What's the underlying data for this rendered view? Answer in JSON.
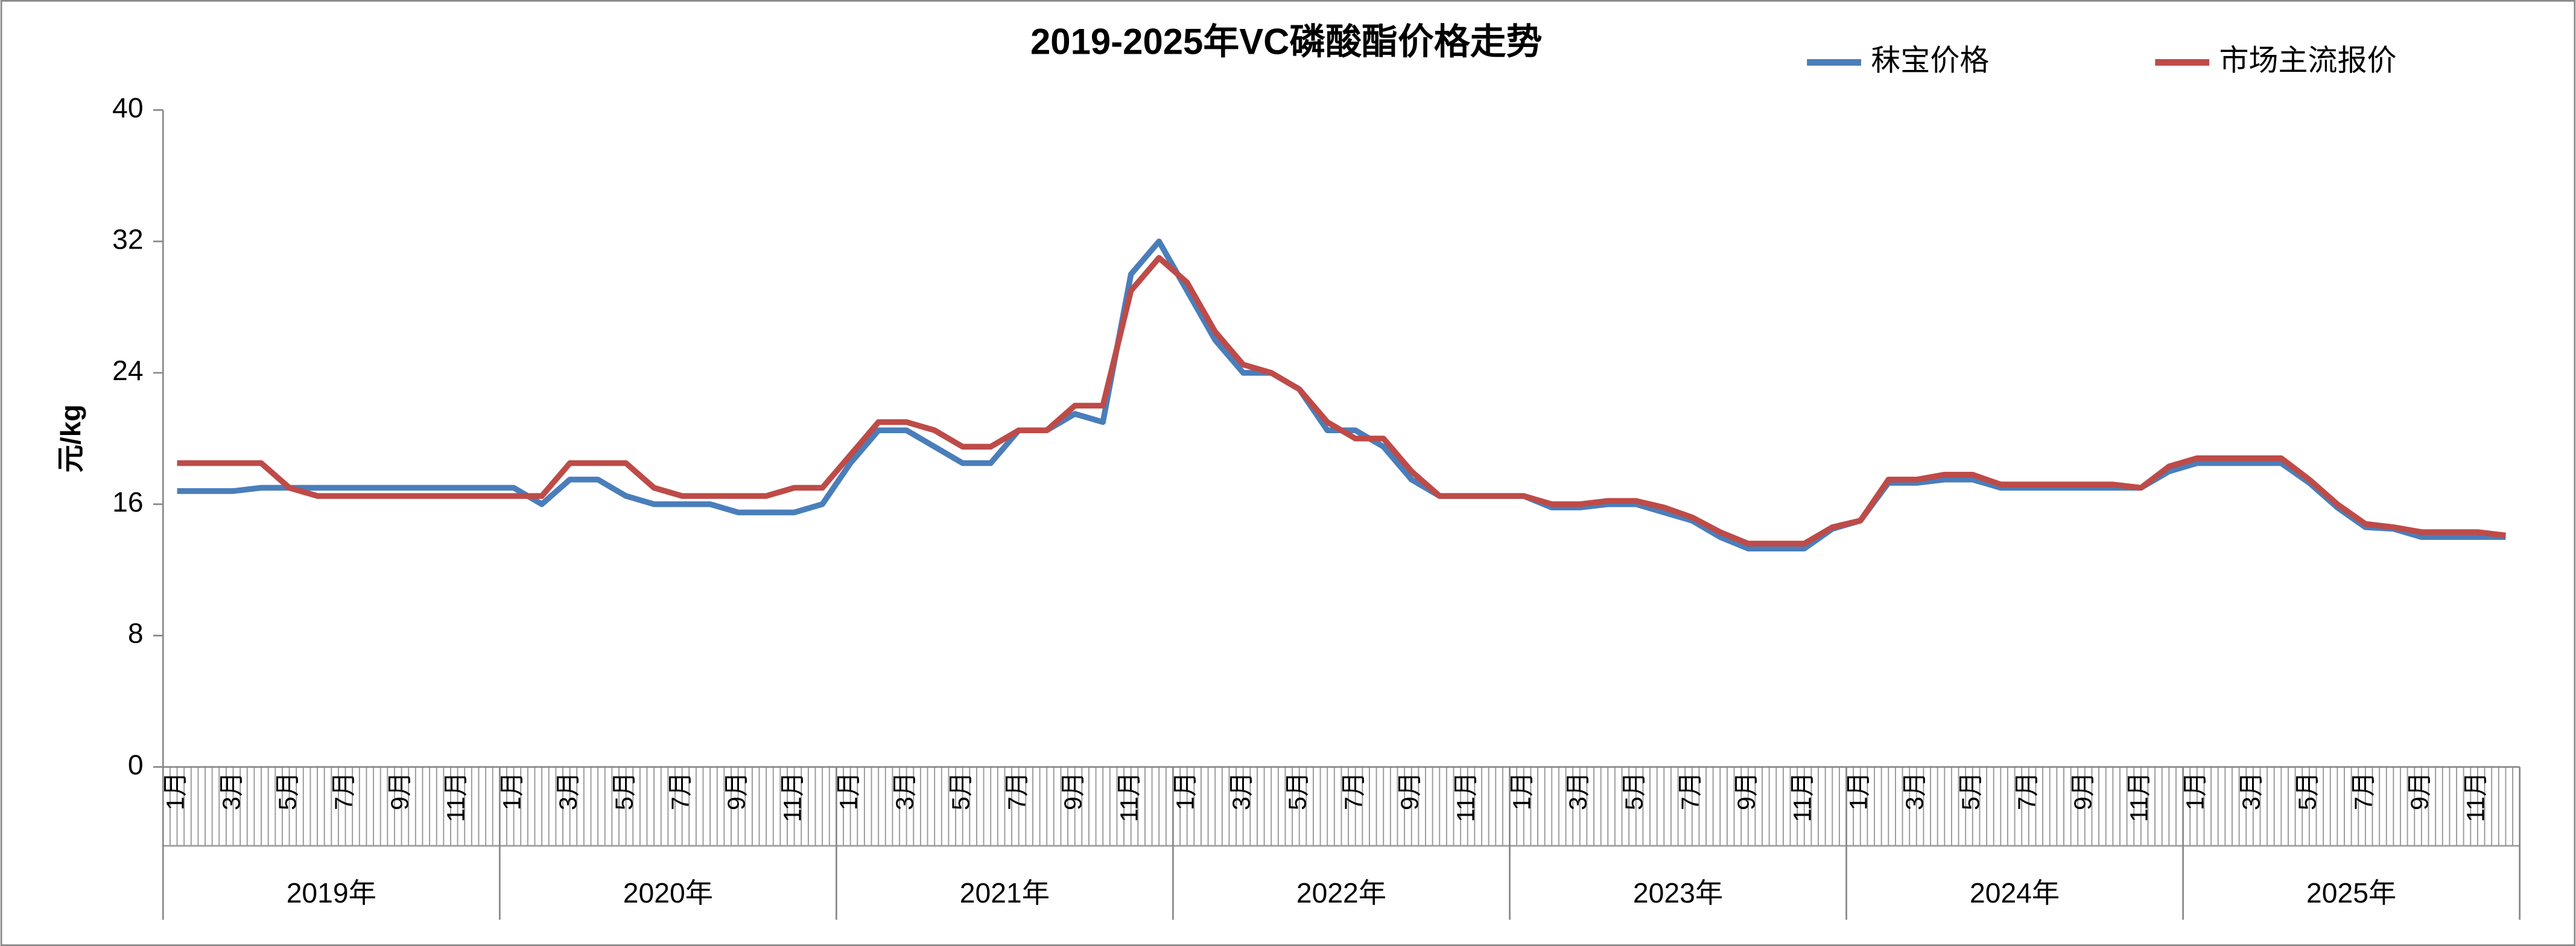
{
  "chart_data": {
    "type": "line",
    "title": "2019-2025年VC磷酸酯价格走势",
    "y_label": "元/kg",
    "categories": [
      "1月",
      null,
      "3月",
      null,
      "5月",
      null,
      "7月",
      null,
      "9月",
      null,
      "11月",
      null,
      "1月",
      null,
      "3月",
      null,
      "5月",
      null,
      "7月",
      null,
      "9月",
      null,
      "11月",
      null,
      "1月",
      null,
      "3月",
      null,
      "5月",
      null,
      "7月",
      null,
      "9月",
      null,
      "11月",
      null,
      "1月",
      null,
      "3月",
      null,
      "5月",
      null,
      "7月",
      null,
      "9月",
      null,
      "11月",
      null,
      "1月",
      null,
      "3月",
      null,
      "5月",
      null,
      "7月",
      null,
      "9月",
      null,
      "11月",
      null,
      "1月",
      null,
      "3月",
      null,
      "5月",
      null,
      "7月",
      null,
      "9月",
      null,
      "11月",
      null,
      "1月",
      null,
      "3月",
      null,
      "5月",
      null,
      "7月",
      null,
      "9月",
      null,
      "11月",
      null
    ],
    "years": [
      "2019年",
      "2020年",
      "2021年",
      "2022年",
      "2023年",
      "2024年",
      "2025年"
    ],
    "series": [
      {
        "name": "秣宝价格",
        "color": "#4a7ebb",
        "values": [
          16.8,
          16.8,
          16.8,
          17,
          17,
          17,
          17,
          17,
          17,
          17,
          17,
          17,
          17,
          16,
          17.5,
          17.5,
          16.5,
          16,
          16,
          16,
          15.5,
          15.5,
          15.5,
          16,
          18.5,
          20.5,
          20.5,
          19.5,
          18.5,
          18.5,
          20.5,
          20.5,
          21.5,
          21,
          30,
          32,
          29,
          26,
          24,
          24,
          23,
          20.5,
          20.5,
          19.5,
          17.5,
          16.5,
          16.5,
          16.5,
          16.5,
          15.8,
          15.8,
          16,
          16,
          15.5,
          15,
          14,
          13.3,
          13.3,
          13.3,
          14.5,
          15,
          17.3,
          17.3,
          17.5,
          17.5,
          17,
          17,
          17,
          17,
          17,
          17,
          18,
          18.5,
          18.5,
          18.5,
          18.5,
          17.3,
          15.8,
          14.6,
          14.5,
          14,
          14,
          14,
          14
        ]
      },
      {
        "name": "市场主流报价",
        "color": "#be4b48",
        "values": [
          18.5,
          18.5,
          18.5,
          18.5,
          17,
          16.5,
          16.5,
          16.5,
          16.5,
          16.5,
          16.5,
          16.5,
          16.5,
          16.5,
          18.5,
          18.5,
          18.5,
          17,
          16.5,
          16.5,
          16.5,
          16.5,
          17,
          17,
          19,
          21,
          21,
          20.5,
          19.5,
          19.5,
          20.5,
          20.5,
          22,
          22,
          29,
          31,
          29.5,
          26.5,
          24.5,
          24,
          23,
          21,
          20,
          20,
          18,
          16.5,
          16.5,
          16.5,
          16.5,
          16,
          16,
          16.2,
          16.2,
          15.8,
          15.2,
          14.3,
          13.6,
          13.6,
          13.6,
          14.6,
          15,
          17.5,
          17.5,
          17.8,
          17.8,
          17.2,
          17.2,
          17.2,
          17.2,
          17.2,
          17,
          18.3,
          18.8,
          18.8,
          18.8,
          18.8,
          17.5,
          16,
          14.8,
          14.6,
          14.3,
          14.3,
          14.3,
          14.1
        ]
      }
    ],
    "ylim": [
      0,
      40
    ],
    "yticks": [
      0,
      8,
      16,
      24,
      32,
      40
    ],
    "grid": false,
    "legend": "top-right"
  }
}
